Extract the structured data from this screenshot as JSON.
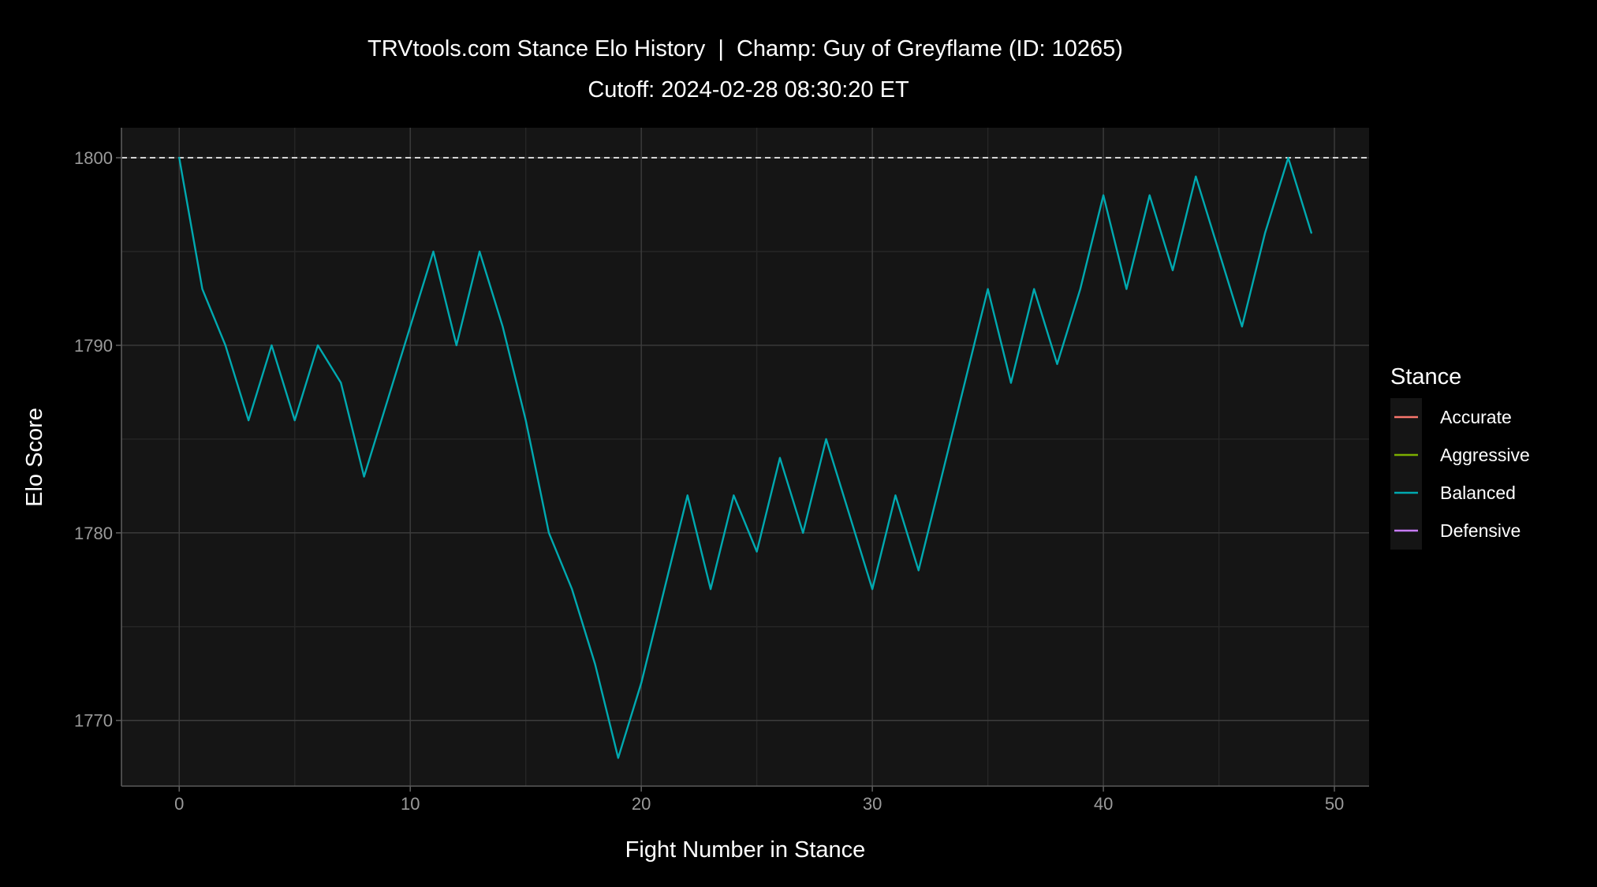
{
  "title": "TRVtools.com Stance Elo History  |  Champ: Guy of Greyflame (ID: 10265)",
  "subtitle": "Cutoff: 2024-02-28 08:30:20 ET",
  "colors": {
    "background": "#000000",
    "panel": "#151515",
    "grid_major": "#3d3d3d",
    "grid_minor": "#262626",
    "axis_line": "#5a5a5a",
    "reference_line": "#ffffff",
    "Accurate": "#F8766D",
    "Aggressive": "#7CAE00",
    "Balanced": "#00A9B0",
    "Defensive": "#C77CFF"
  },
  "chart_data": {
    "type": "line",
    "title": "TRVtools.com Stance Elo History  |  Champ: Guy of Greyflame (ID: 10265)",
    "subtitle": "Cutoff: 2024-02-28 08:30:20 ET",
    "xlabel": "Fight Number in Stance",
    "ylabel": "Elo Score",
    "xlim": [
      -2.5,
      51.5
    ],
    "ylim": [
      1766.5,
      1801.6
    ],
    "x_ticks": [
      0,
      10,
      20,
      30,
      40,
      50
    ],
    "y_ticks": [
      1770,
      1780,
      1790,
      1800
    ],
    "grid": true,
    "reference_line": {
      "y": 1800,
      "style": "dashed"
    },
    "legend": {
      "title": "Stance",
      "position": "right",
      "entries": [
        "Accurate",
        "Aggressive",
        "Balanced",
        "Defensive"
      ]
    },
    "series": [
      {
        "name": "Balanced",
        "x": [
          0,
          1,
          2,
          3,
          4,
          5,
          6,
          7,
          8,
          9,
          10,
          11,
          12,
          13,
          14,
          15,
          16,
          17,
          18,
          19,
          20,
          21,
          22,
          23,
          24,
          25,
          26,
          27,
          28,
          29,
          30,
          31,
          32,
          33,
          34,
          35,
          36,
          37,
          38,
          39,
          40,
          41,
          42,
          43,
          44,
          45,
          46,
          47,
          48,
          49
        ],
        "y": [
          1800,
          1793,
          1790,
          1786,
          1790,
          1786,
          1790,
          1788,
          1783,
          1787,
          1791,
          1795,
          1790,
          1795,
          1791,
          1786,
          1780,
          1777,
          1773,
          1768,
          1772,
          1777,
          1782,
          1777,
          1782,
          1779,
          1784,
          1780,
          1785,
          1781,
          1777,
          1782,
          1778,
          1783,
          1788,
          1793,
          1788,
          1793,
          1789,
          1793,
          1798,
          1793,
          1798,
          1794,
          1799,
          1795,
          1791,
          1796,
          1800,
          1796
        ]
      }
    ]
  }
}
